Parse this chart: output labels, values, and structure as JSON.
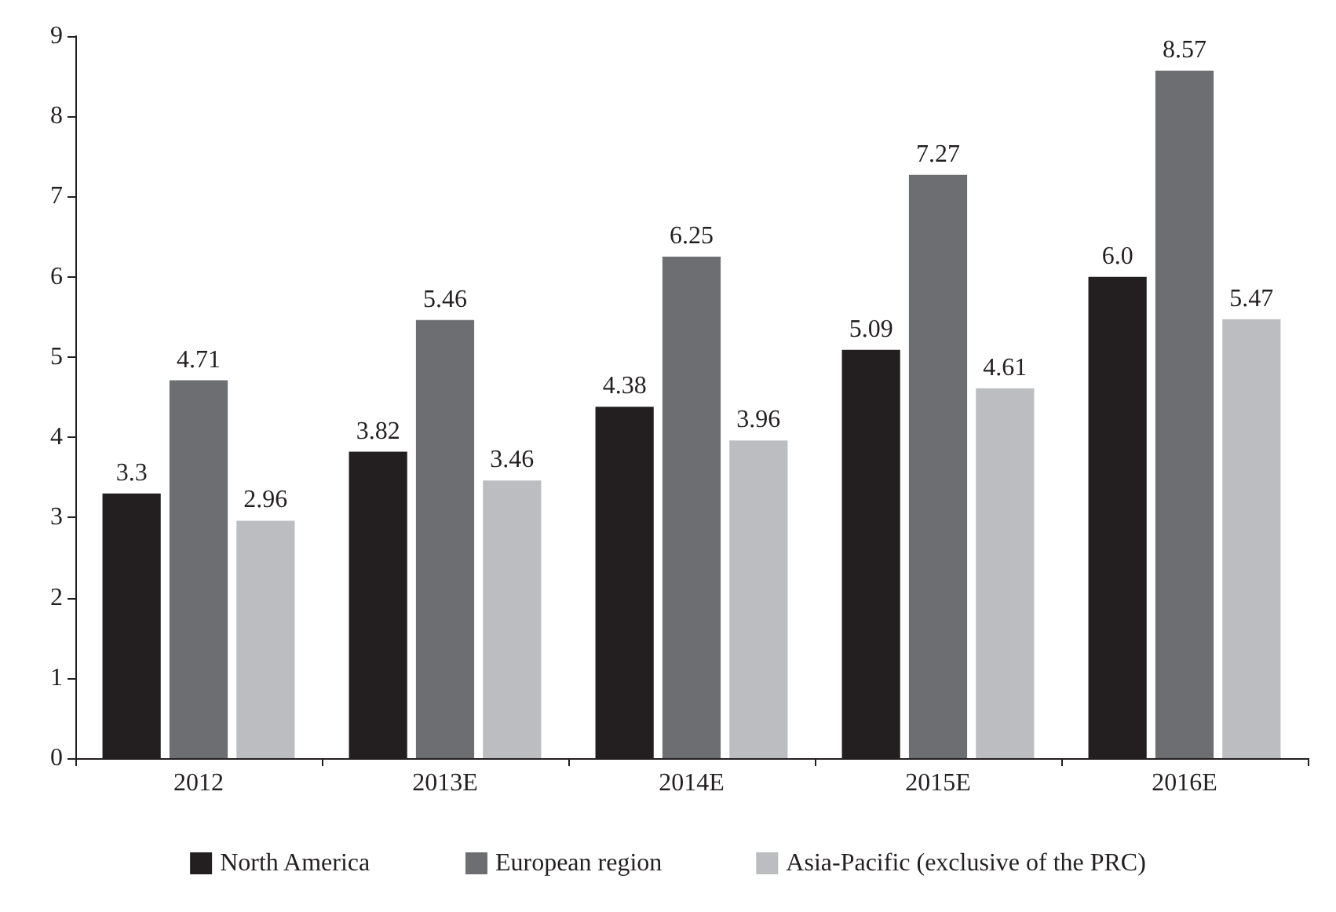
{
  "chart_data": {
    "type": "bar",
    "categories": [
      "2012",
      "2013E",
      "2014E",
      "2015E",
      "2016E"
    ],
    "series": [
      {
        "name": "North America",
        "color": "#231f20",
        "values": [
          3.3,
          3.82,
          4.38,
          5.09,
          6.0
        ],
        "value_labels": [
          "3.3",
          "3.82",
          "4.38",
          "5.09",
          "6.0"
        ]
      },
      {
        "name": "European region",
        "color": "#6d6e71",
        "values": [
          4.71,
          5.46,
          6.25,
          7.27,
          8.57
        ],
        "value_labels": [
          "4.71",
          "5.46",
          "6.25",
          "7.27",
          "8.57"
        ]
      },
      {
        "name": "Asia-Pacific (exclusive of the PRC)",
        "color": "#bcbdc0",
        "values": [
          2.96,
          3.46,
          3.96,
          4.61,
          5.47
        ],
        "value_labels": [
          "2.96",
          "3.46",
          "3.96",
          "4.61",
          "5.47"
        ]
      }
    ],
    "ylim": [
      0,
      9
    ],
    "yticks": [
      0,
      1,
      2,
      3,
      4,
      5,
      6,
      7,
      8,
      9
    ],
    "grid": false,
    "legend": "bottom"
  }
}
